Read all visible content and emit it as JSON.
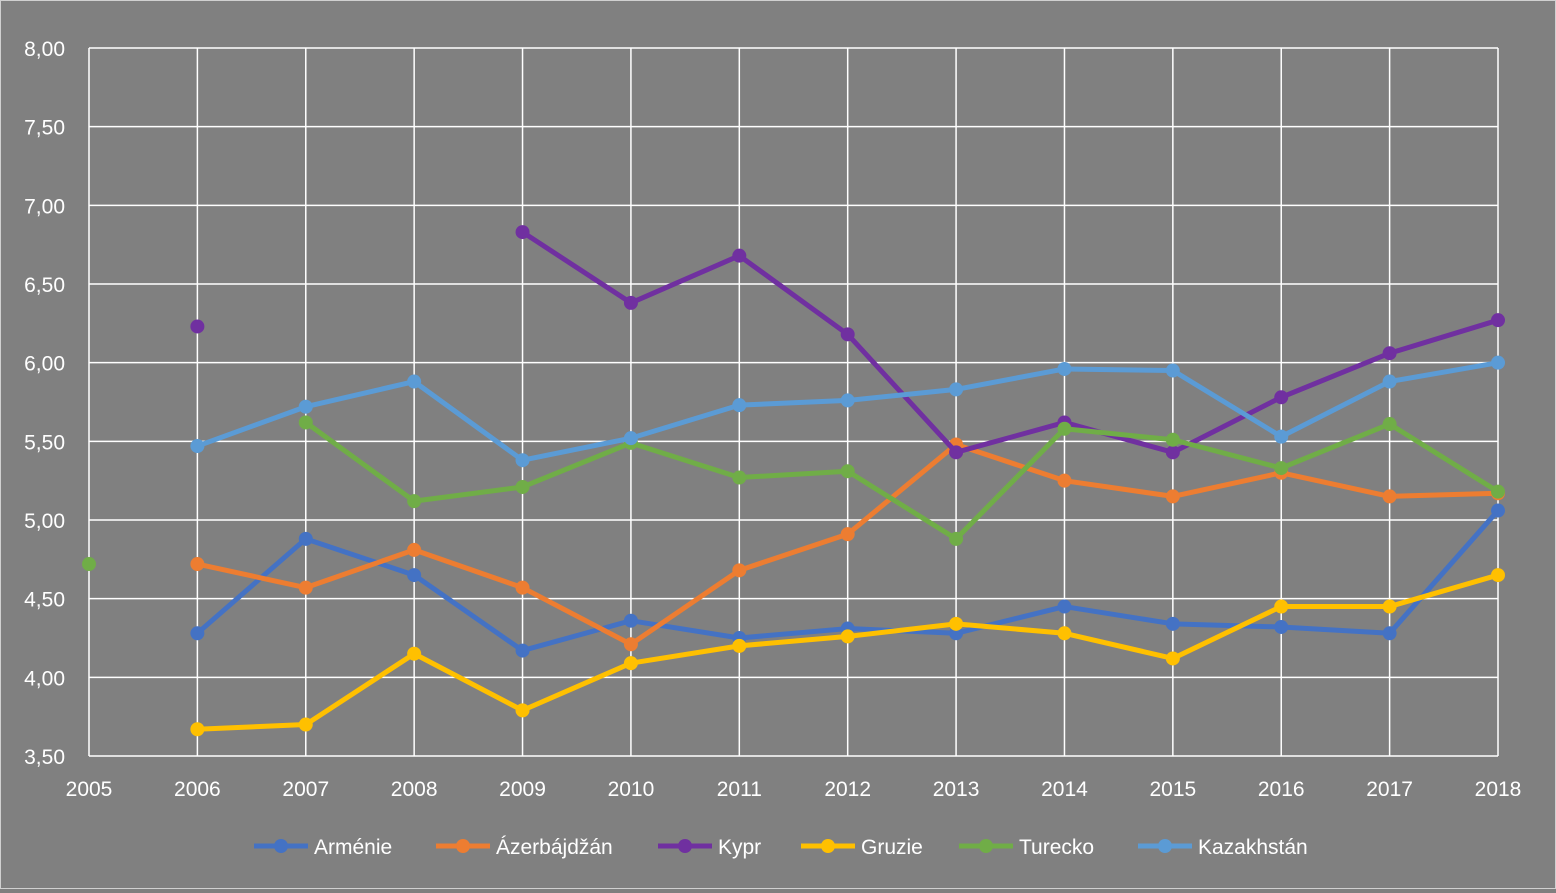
{
  "chart_data": {
    "type": "line",
    "title": "",
    "xlabel": "",
    "ylabel": "",
    "x": [
      "2005",
      "2006",
      "2007",
      "2008",
      "2009",
      "2010",
      "2011",
      "2012",
      "2013",
      "2014",
      "2015",
      "2016",
      "2017",
      "2018"
    ],
    "y_ticks": [
      "3,50",
      "4,00",
      "4,50",
      "5,00",
      "5,50",
      "6,00",
      "6,50",
      "7,00",
      "7,50",
      "8,00"
    ],
    "ylim": [
      3.5,
      8.0
    ],
    "grid": true,
    "legend_position": "bottom",
    "series": [
      {
        "name": "Arménie",
        "color": "#4472c4",
        "values": [
          null,
          4.28,
          4.88,
          4.65,
          4.17,
          4.36,
          4.25,
          4.31,
          4.28,
          4.45,
          4.34,
          4.32,
          4.28,
          5.06
        ]
      },
      {
        "name": "Ázerbájdžán",
        "color": "#ed7d31",
        "values": [
          null,
          4.72,
          4.57,
          4.81,
          4.57,
          4.21,
          4.68,
          4.91,
          5.48,
          5.25,
          5.15,
          5.3,
          5.15,
          5.17
        ]
      },
      {
        "name": "Kypr",
        "color": "#7030a0",
        "values": [
          null,
          6.23,
          null,
          null,
          6.83,
          6.38,
          6.68,
          6.18,
          5.43,
          5.62,
          5.43,
          5.78,
          6.06,
          6.27
        ]
      },
      {
        "name": "Gruzie",
        "color": "#ffc000",
        "values": [
          null,
          3.67,
          3.7,
          4.15,
          3.79,
          4.09,
          4.2,
          4.26,
          4.34,
          4.28,
          4.12,
          4.45,
          4.45,
          4.65
        ]
      },
      {
        "name": "Turecko",
        "color": "#70ad47",
        "values": [
          4.72,
          null,
          5.62,
          5.12,
          5.21,
          5.49,
          5.27,
          5.31,
          4.88,
          5.58,
          5.51,
          5.33,
          5.61,
          5.18
        ]
      },
      {
        "name": "Kazakhstán",
        "color": "#5b9bd5",
        "values": [
          null,
          5.47,
          5.72,
          5.88,
          5.38,
          5.52,
          5.73,
          5.76,
          5.83,
          5.96,
          5.95,
          5.53,
          5.88,
          6.0
        ]
      }
    ]
  }
}
